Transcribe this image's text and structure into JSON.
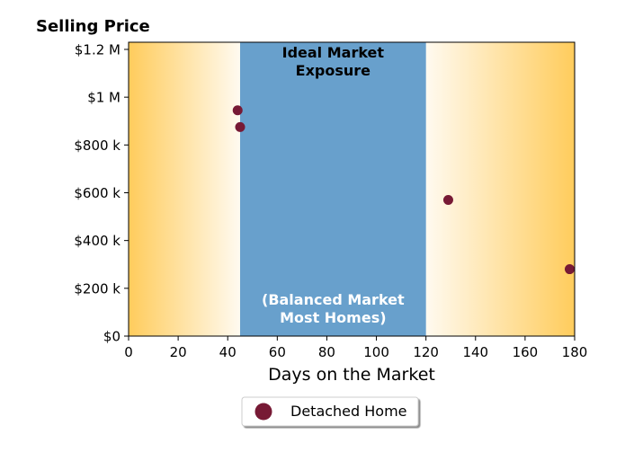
{
  "chart_data": {
    "type": "scatter",
    "title": "",
    "ylabel": "Selling Price",
    "xlabel": "Days on the Market",
    "xlim": [
      0,
      180
    ],
    "ylim": [
      0,
      1230000
    ],
    "x_ticks": [
      0,
      20,
      40,
      60,
      80,
      100,
      120,
      140,
      160,
      180
    ],
    "x_tick_labels": [
      "0",
      "20",
      "40",
      "60",
      "80",
      "100",
      "120",
      "140",
      "160",
      "180"
    ],
    "y_ticks": [
      0,
      200000,
      400000,
      600000,
      800000,
      1000000,
      1200000
    ],
    "y_tick_labels": [
      "$0",
      "$200 k",
      "$400 k",
      "$600 k",
      "$800 k",
      "$1 M",
      "$1.2 M"
    ],
    "grid": false,
    "legend_position": "bottom-center",
    "band": {
      "x_start": 45,
      "x_end": 120,
      "title_lines": [
        "Ideal Market",
        "Exposure"
      ],
      "subtitle_lines": [
        "(Balanced Market",
        "Most Homes)"
      ],
      "color": "#68a0cc"
    },
    "background_gradient": {
      "edge_color": "#ffcc5c",
      "center_color": "#fffaf0"
    },
    "series": [
      {
        "name": "Detached Home",
        "color": "#771a35",
        "points": [
          {
            "x": 44,
            "y": 945000
          },
          {
            "x": 45,
            "y": 875000
          },
          {
            "x": 129,
            "y": 570000
          },
          {
            "x": 178,
            "y": 280000
          }
        ]
      }
    ]
  }
}
